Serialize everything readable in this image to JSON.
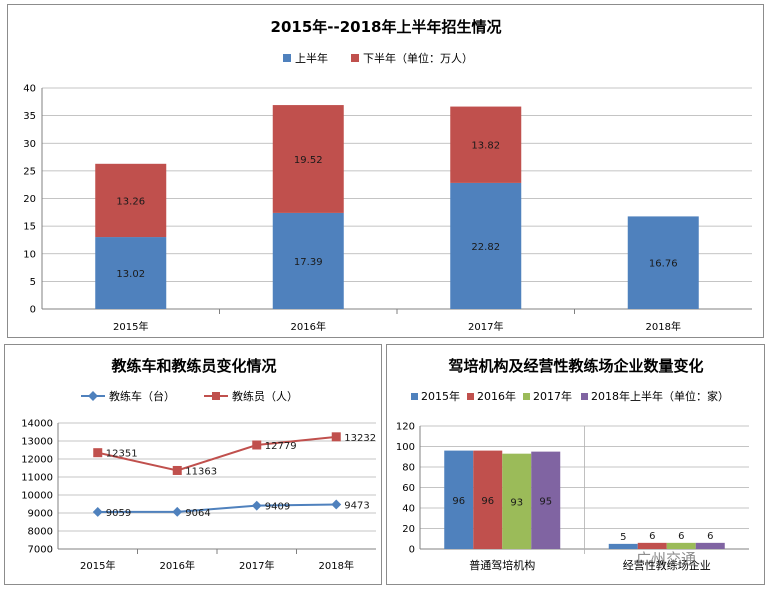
{
  "chart_data": [
    {
      "type": "bar",
      "stacked": true,
      "title": "2015年--2018年上半年招生情况",
      "categories": [
        "2015年",
        "2016年",
        "2017年",
        "2018年"
      ],
      "series": [
        {
          "name": "上半年",
          "color": "#4f81bd",
          "values": [
            13.02,
            17.39,
            22.82,
            16.76
          ],
          "labels": [
            "13.02",
            "17.39",
            "22.82",
            "16.76"
          ]
        },
        {
          "name": "下半年（单位：万人）",
          "color": "#c0504d",
          "values": [
            13.26,
            19.52,
            13.82,
            null
          ],
          "labels": [
            "13.26",
            "19.52",
            "13.82",
            ""
          ]
        }
      ],
      "ylim": [
        0,
        40
      ],
      "yticks": [
        "0",
        "5",
        "10",
        "15",
        "20",
        "25",
        "30",
        "35",
        "40"
      ],
      "legend_position": "top"
    },
    {
      "type": "line",
      "title": "教练车和教练员变化情况",
      "categories": [
        "2015年",
        "2016年",
        "2017年",
        "2018年"
      ],
      "series": [
        {
          "name": "教练车（台）",
          "color": "#4f81bd",
          "marker": "diamond",
          "values": [
            9059,
            9064,
            9409,
            9473
          ],
          "labels": [
            "9059",
            "9064",
            "9409",
            "9473"
          ]
        },
        {
          "name": "教练员（人）",
          "color": "#c0504d",
          "marker": "square",
          "values": [
            12351,
            11363,
            12779,
            13232
          ],
          "labels": [
            "12351",
            "11363",
            "12779",
            "13232"
          ]
        }
      ],
      "ylim": [
        7000,
        14000
      ],
      "yticks": [
        "7000",
        "8000",
        "9000",
        "10000",
        "11000",
        "12000",
        "13000",
        "14000"
      ],
      "legend_position": "top"
    },
    {
      "type": "bar",
      "title": "驾培机构及经营性教练场企业数量变化",
      "categories": [
        "普通驾培机构",
        "经营性教练场企业"
      ],
      "series": [
        {
          "name": "2015年",
          "color": "#4f81bd",
          "values": [
            96,
            5
          ],
          "labels": [
            "96",
            "5"
          ]
        },
        {
          "name": "2016年",
          "color": "#c0504d",
          "values": [
            96,
            6
          ],
          "labels": [
            "96",
            "6"
          ]
        },
        {
          "name": "2017年",
          "color": "#9bbb59",
          "values": [
            93,
            6
          ],
          "labels": [
            "93",
            "6"
          ]
        },
        {
          "name": "2018年上半年（单位：家）",
          "color": "#8064a2",
          "values": [
            95,
            6
          ],
          "labels": [
            "95",
            "6"
          ]
        }
      ],
      "ylim": [
        0,
        120
      ],
      "yticks": [
        "0",
        "20",
        "40",
        "60",
        "80",
        "100",
        "120"
      ],
      "legend_position": "top"
    }
  ],
  "watermark": "广州交通"
}
